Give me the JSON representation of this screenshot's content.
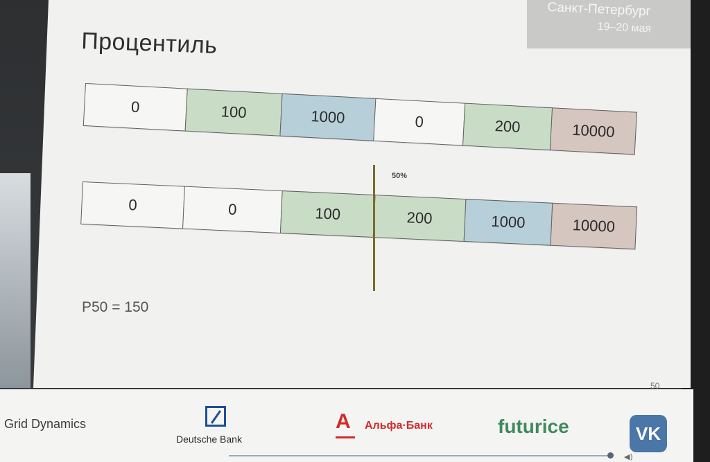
{
  "header": {
    "city": "Санкт-Петербург",
    "dates": "19–20 мая"
  },
  "slide": {
    "title": "Процентиль",
    "row1": [
      "0",
      "100",
      "1000",
      "0",
      "200",
      "10000"
    ],
    "row2": [
      "0",
      "0",
      "100",
      "200",
      "1000",
      "10000"
    ],
    "median_marker_label": "50%",
    "result": "P50 = 150",
    "page_number": "50"
  },
  "sponsors": {
    "grid_dynamics": "Grid Dynamics",
    "deutsche_bank": "Deutsche Bank",
    "alfa_letter": "А",
    "alfa_bank": "Альфа·Банк",
    "futurice": "futurice",
    "vk": "VK"
  },
  "colors": {
    "white_cell": "#f6f6f4",
    "green_cell": "#c9ddc6",
    "blue_cell": "#b7cfd8",
    "taupe_cell": "#d5c6bf",
    "divider": "#7a6a2f"
  }
}
